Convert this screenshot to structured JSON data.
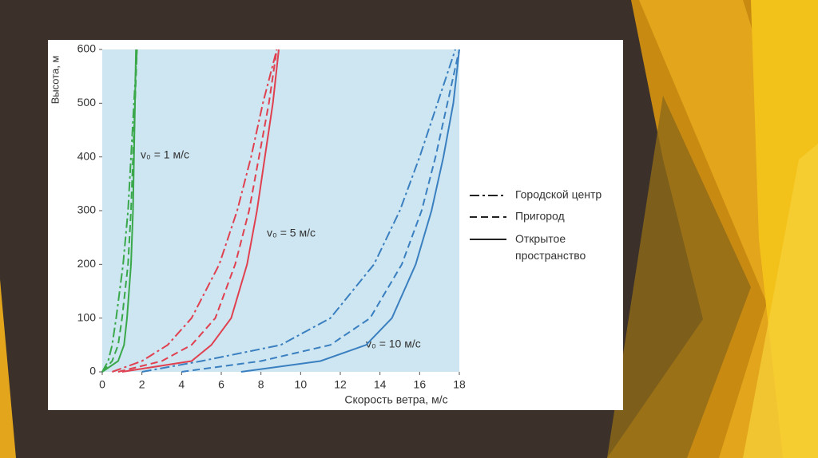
{
  "chart_data": {
    "type": "line",
    "xlabel": "Скорость ветра, м/с",
    "ylabel": "Высота, м",
    "xlim": [
      0,
      18
    ],
    "xticks": [
      0,
      2,
      4,
      6,
      8,
      10,
      12,
      14,
      16,
      18
    ],
    "ylim": [
      0,
      600
    ],
    "yticks": [
      0,
      100,
      200,
      300,
      400,
      500,
      600
    ],
    "grid": false,
    "legend": [
      {
        "label": "Городской центр",
        "style": "dashdot"
      },
      {
        "label": "Пригород",
        "style": "dashed"
      },
      {
        "label": "Открытое пространство",
        "style": "solid"
      }
    ],
    "annotations": [
      "v₀ = 1 м/с",
      "v₀ = 5 м/с",
      "v₀ = 10 м/с"
    ],
    "series": [
      {
        "color": "#3aa84a",
        "style": "dashdot",
        "x": [
          0,
          0.3,
          0.5,
          0.7,
          1.05,
          1.3,
          1.45,
          1.6,
          1.75
        ],
        "values": [
          0,
          20,
          50,
          100,
          200,
          300,
          400,
          500,
          600
        ]
      },
      {
        "color": "#3aa84a",
        "style": "dashed",
        "x": [
          0,
          0.5,
          0.8,
          1.0,
          1.3,
          1.45,
          1.55,
          1.65,
          1.75
        ],
        "values": [
          0,
          20,
          50,
          100,
          200,
          300,
          400,
          500,
          600
        ]
      },
      {
        "color": "#3aa84a",
        "style": "solid",
        "x": [
          0,
          0.8,
          1.1,
          1.25,
          1.45,
          1.55,
          1.6,
          1.65,
          1.7
        ],
        "values": [
          0,
          20,
          50,
          100,
          200,
          300,
          400,
          500,
          600
        ]
      },
      {
        "color": "#e0404f",
        "style": "dashdot",
        "x": [
          0.5,
          2,
          3.3,
          4.5,
          5.9,
          6.8,
          7.5,
          8.1,
          8.8
        ],
        "values": [
          0,
          20,
          50,
          100,
          200,
          300,
          400,
          500,
          600
        ]
      },
      {
        "color": "#e0404f",
        "style": "dashed",
        "x": [
          0.8,
          3,
          4.5,
          5.7,
          6.7,
          7.4,
          7.9,
          8.4,
          8.8
        ],
        "values": [
          0,
          20,
          50,
          100,
          200,
          300,
          400,
          500,
          600
        ]
      },
      {
        "color": "#e0404f",
        "style": "solid",
        "x": [
          1,
          4.5,
          5.5,
          6.5,
          7.3,
          7.8,
          8.2,
          8.6,
          8.9
        ],
        "values": [
          0,
          20,
          50,
          100,
          200,
          300,
          400,
          500,
          600
        ]
      },
      {
        "color": "#3a7fc0",
        "style": "dashdot",
        "x": [
          2,
          5,
          9,
          11.5,
          13.7,
          15,
          16,
          16.9,
          17.8
        ],
        "values": [
          0,
          20,
          50,
          100,
          200,
          300,
          400,
          500,
          600
        ]
      },
      {
        "color": "#3a7fc0",
        "style": "dashed",
        "x": [
          4,
          8,
          11.5,
          13.5,
          15.1,
          16.1,
          16.8,
          17.4,
          18
        ],
        "values": [
          0,
          20,
          50,
          100,
          200,
          300,
          400,
          500,
          600
        ]
      },
      {
        "color": "#3a7fc0",
        "style": "solid",
        "x": [
          7,
          11,
          13.3,
          14.6,
          15.8,
          16.6,
          17.2,
          17.7,
          18
        ],
        "values": [
          0,
          20,
          50,
          100,
          200,
          300,
          400,
          500,
          600
        ]
      }
    ]
  }
}
